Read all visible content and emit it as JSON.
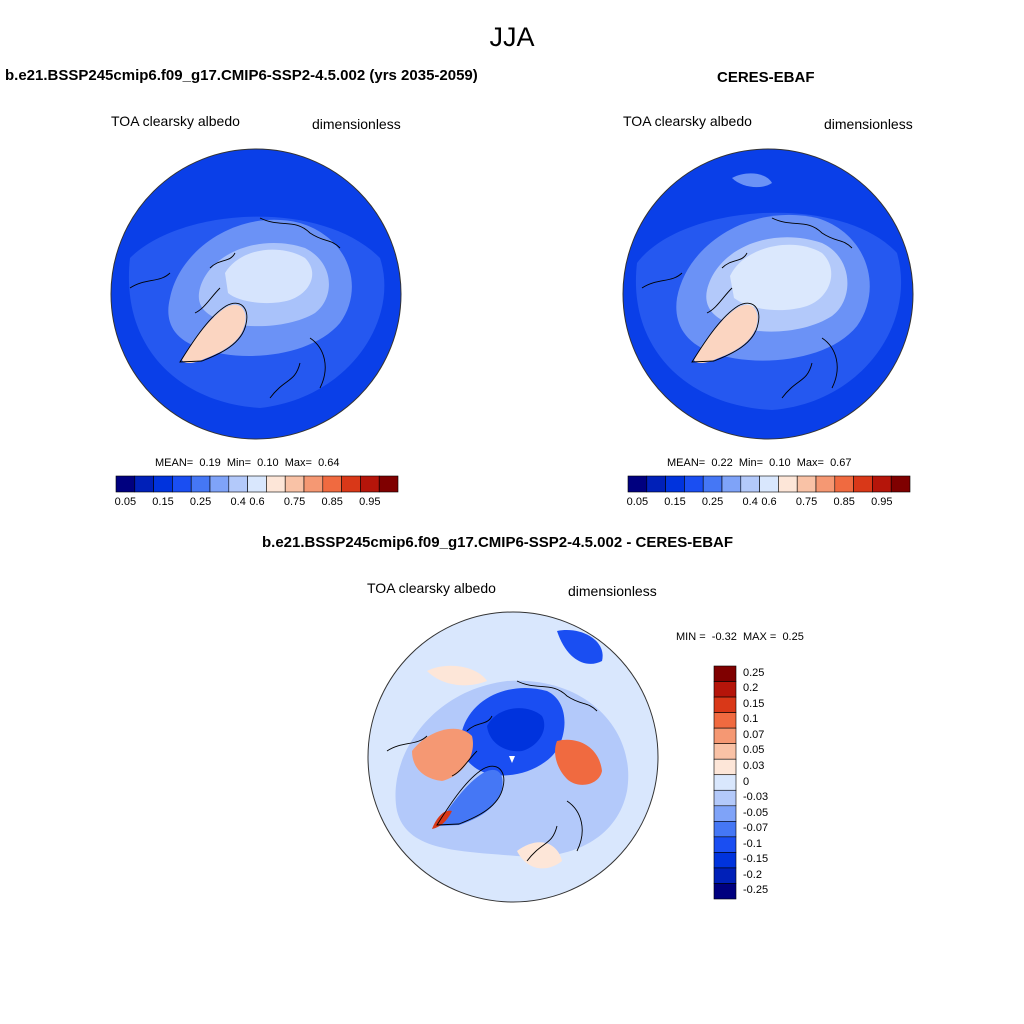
{
  "season": "JJA",
  "colors": {
    "abs_scale": [
      "#00007f",
      "#0020b8",
      "#0033dd",
      "#1a4ef2",
      "#4577f5",
      "#7fa3f8",
      "#b3c9fa",
      "#d9e7fd",
      "#fde6d8",
      "#f9c2a6",
      "#f59873",
      "#f06a40",
      "#d93818",
      "#b5150a",
      "#7f0000"
    ],
    "diff_scale": [
      "#00007f",
      "#0020b8",
      "#0033dd",
      "#1a4ef2",
      "#4577f5",
      "#7fa3f8",
      "#b3c9fa",
      "#d9e7fd",
      "#fde6d8",
      "#f9c2a6",
      "#f59873",
      "#f06a40",
      "#d93818",
      "#b5150a",
      "#7f0000"
    ]
  },
  "panels": [
    {
      "title": "b.e21.BSSP245cmip6.f09_g17.CMIP6-SSP2-4.5.002 (yrs 2035-2059)",
      "variable": "TOA clearsky albedo",
      "units": "dimensionless",
      "mean_label": "MEAN=",
      "mean": "0.19",
      "min_label": "Min=",
      "min": "0.10",
      "max_label": "Max=",
      "max": "0.64",
      "ticks": [
        "0.05",
        "0.15",
        "0.25",
        "0.4",
        "0.6",
        "0.75",
        "0.85",
        "0.95"
      ]
    },
    {
      "title": "CERES-EBAF",
      "variable": "TOA clearsky albedo",
      "units": "dimensionless",
      "mean_label": "MEAN=",
      "mean": "0.22",
      "min_label": "Min=",
      "min": "0.10",
      "max_label": "Max=",
      "max": "0.67",
      "ticks": [
        "0.05",
        "0.15",
        "0.25",
        "0.4",
        "0.6",
        "0.75",
        "0.85",
        "0.95"
      ]
    }
  ],
  "diff": {
    "title": "b.e21.BSSP245cmip6.f09_g17.CMIP6-SSP2-4.5.002 - CERES-EBAF",
    "variable": "TOA clearsky albedo",
    "units": "dimensionless",
    "min_label": "MIN =",
    "min": "-0.32",
    "max_label": "MAX =",
    "max": "0.25",
    "ticks": [
      "0.25",
      "0.2",
      "0.15",
      "0.1",
      "0.07",
      "0.05",
      "0.03",
      "0",
      "-0.03",
      "-0.05",
      "-0.07",
      "-0.1",
      "-0.15",
      "-0.2",
      "-0.25"
    ]
  }
}
